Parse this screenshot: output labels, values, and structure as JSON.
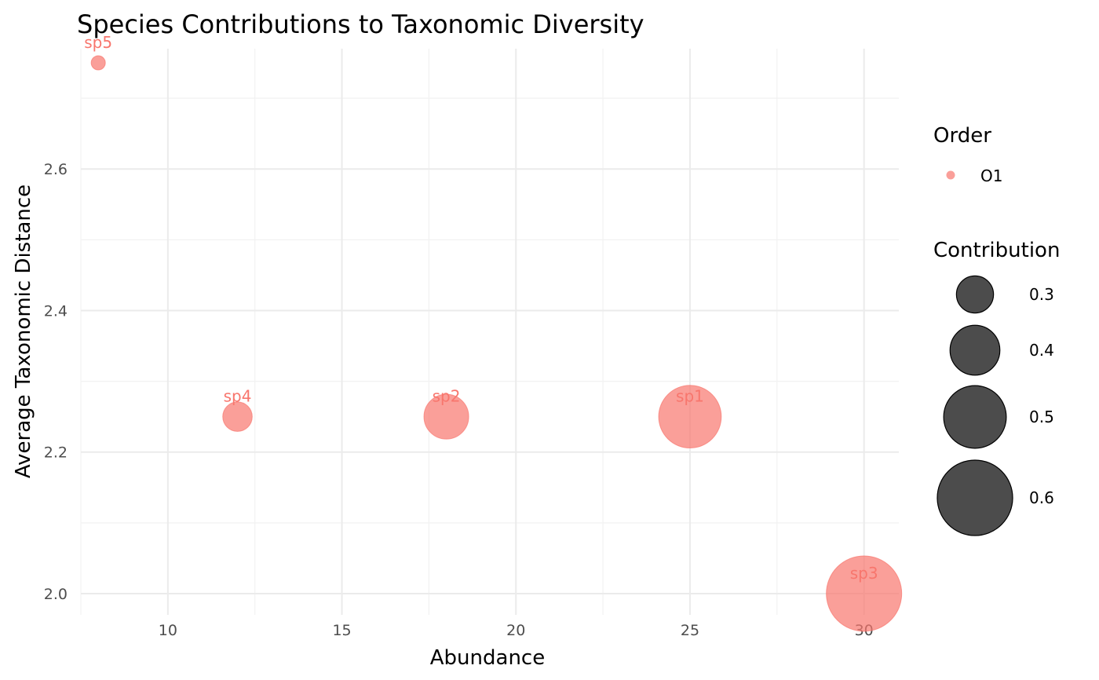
{
  "chart_data": {
    "type": "scatter",
    "title": "Species Contributions to Taxonomic Diversity",
    "xlabel": "Abundance",
    "ylabel": "Average Taxonomic Distance",
    "xlim": [
      7.5,
      31
    ],
    "ylim": [
      1.97,
      2.77
    ],
    "x_ticks": [
      10,
      15,
      20,
      25,
      30
    ],
    "y_ticks": [
      2.0,
      2.2,
      2.4,
      2.6
    ],
    "x_tick_labels": [
      "10",
      "15",
      "20",
      "25",
      "30"
    ],
    "y_tick_labels": [
      "2.0",
      "2.2",
      "2.4",
      "2.6"
    ],
    "grid": true,
    "legend_position": "right",
    "point_color": "#F8766D",
    "points": [
      {
        "label": "sp1",
        "x": 25,
        "y": 2.25,
        "contribution": 0.5,
        "order": "O1"
      },
      {
        "label": "sp2",
        "x": 18,
        "y": 2.25,
        "contribution": 0.36,
        "order": "O1"
      },
      {
        "label": "sp3",
        "x": 30,
        "y": 2.0,
        "contribution": 0.6,
        "order": "O1"
      },
      {
        "label": "sp4",
        "x": 12,
        "y": 2.25,
        "contribution": 0.24,
        "order": "O1"
      },
      {
        "label": "sp5",
        "x": 8,
        "y": 2.75,
        "contribution": 0.12,
        "order": "O1"
      }
    ],
    "legend_color": {
      "title": "Order",
      "items": [
        {
          "label": "O1",
          "color": "#F8766D"
        }
      ]
    },
    "legend_size": {
      "title": "Contribution",
      "items": [
        {
          "label": "0.3",
          "value": 0.3
        },
        {
          "label": "0.4",
          "value": 0.4
        },
        {
          "label": "0.5",
          "value": 0.5
        },
        {
          "label": "0.6",
          "value": 0.6
        }
      ]
    }
  }
}
